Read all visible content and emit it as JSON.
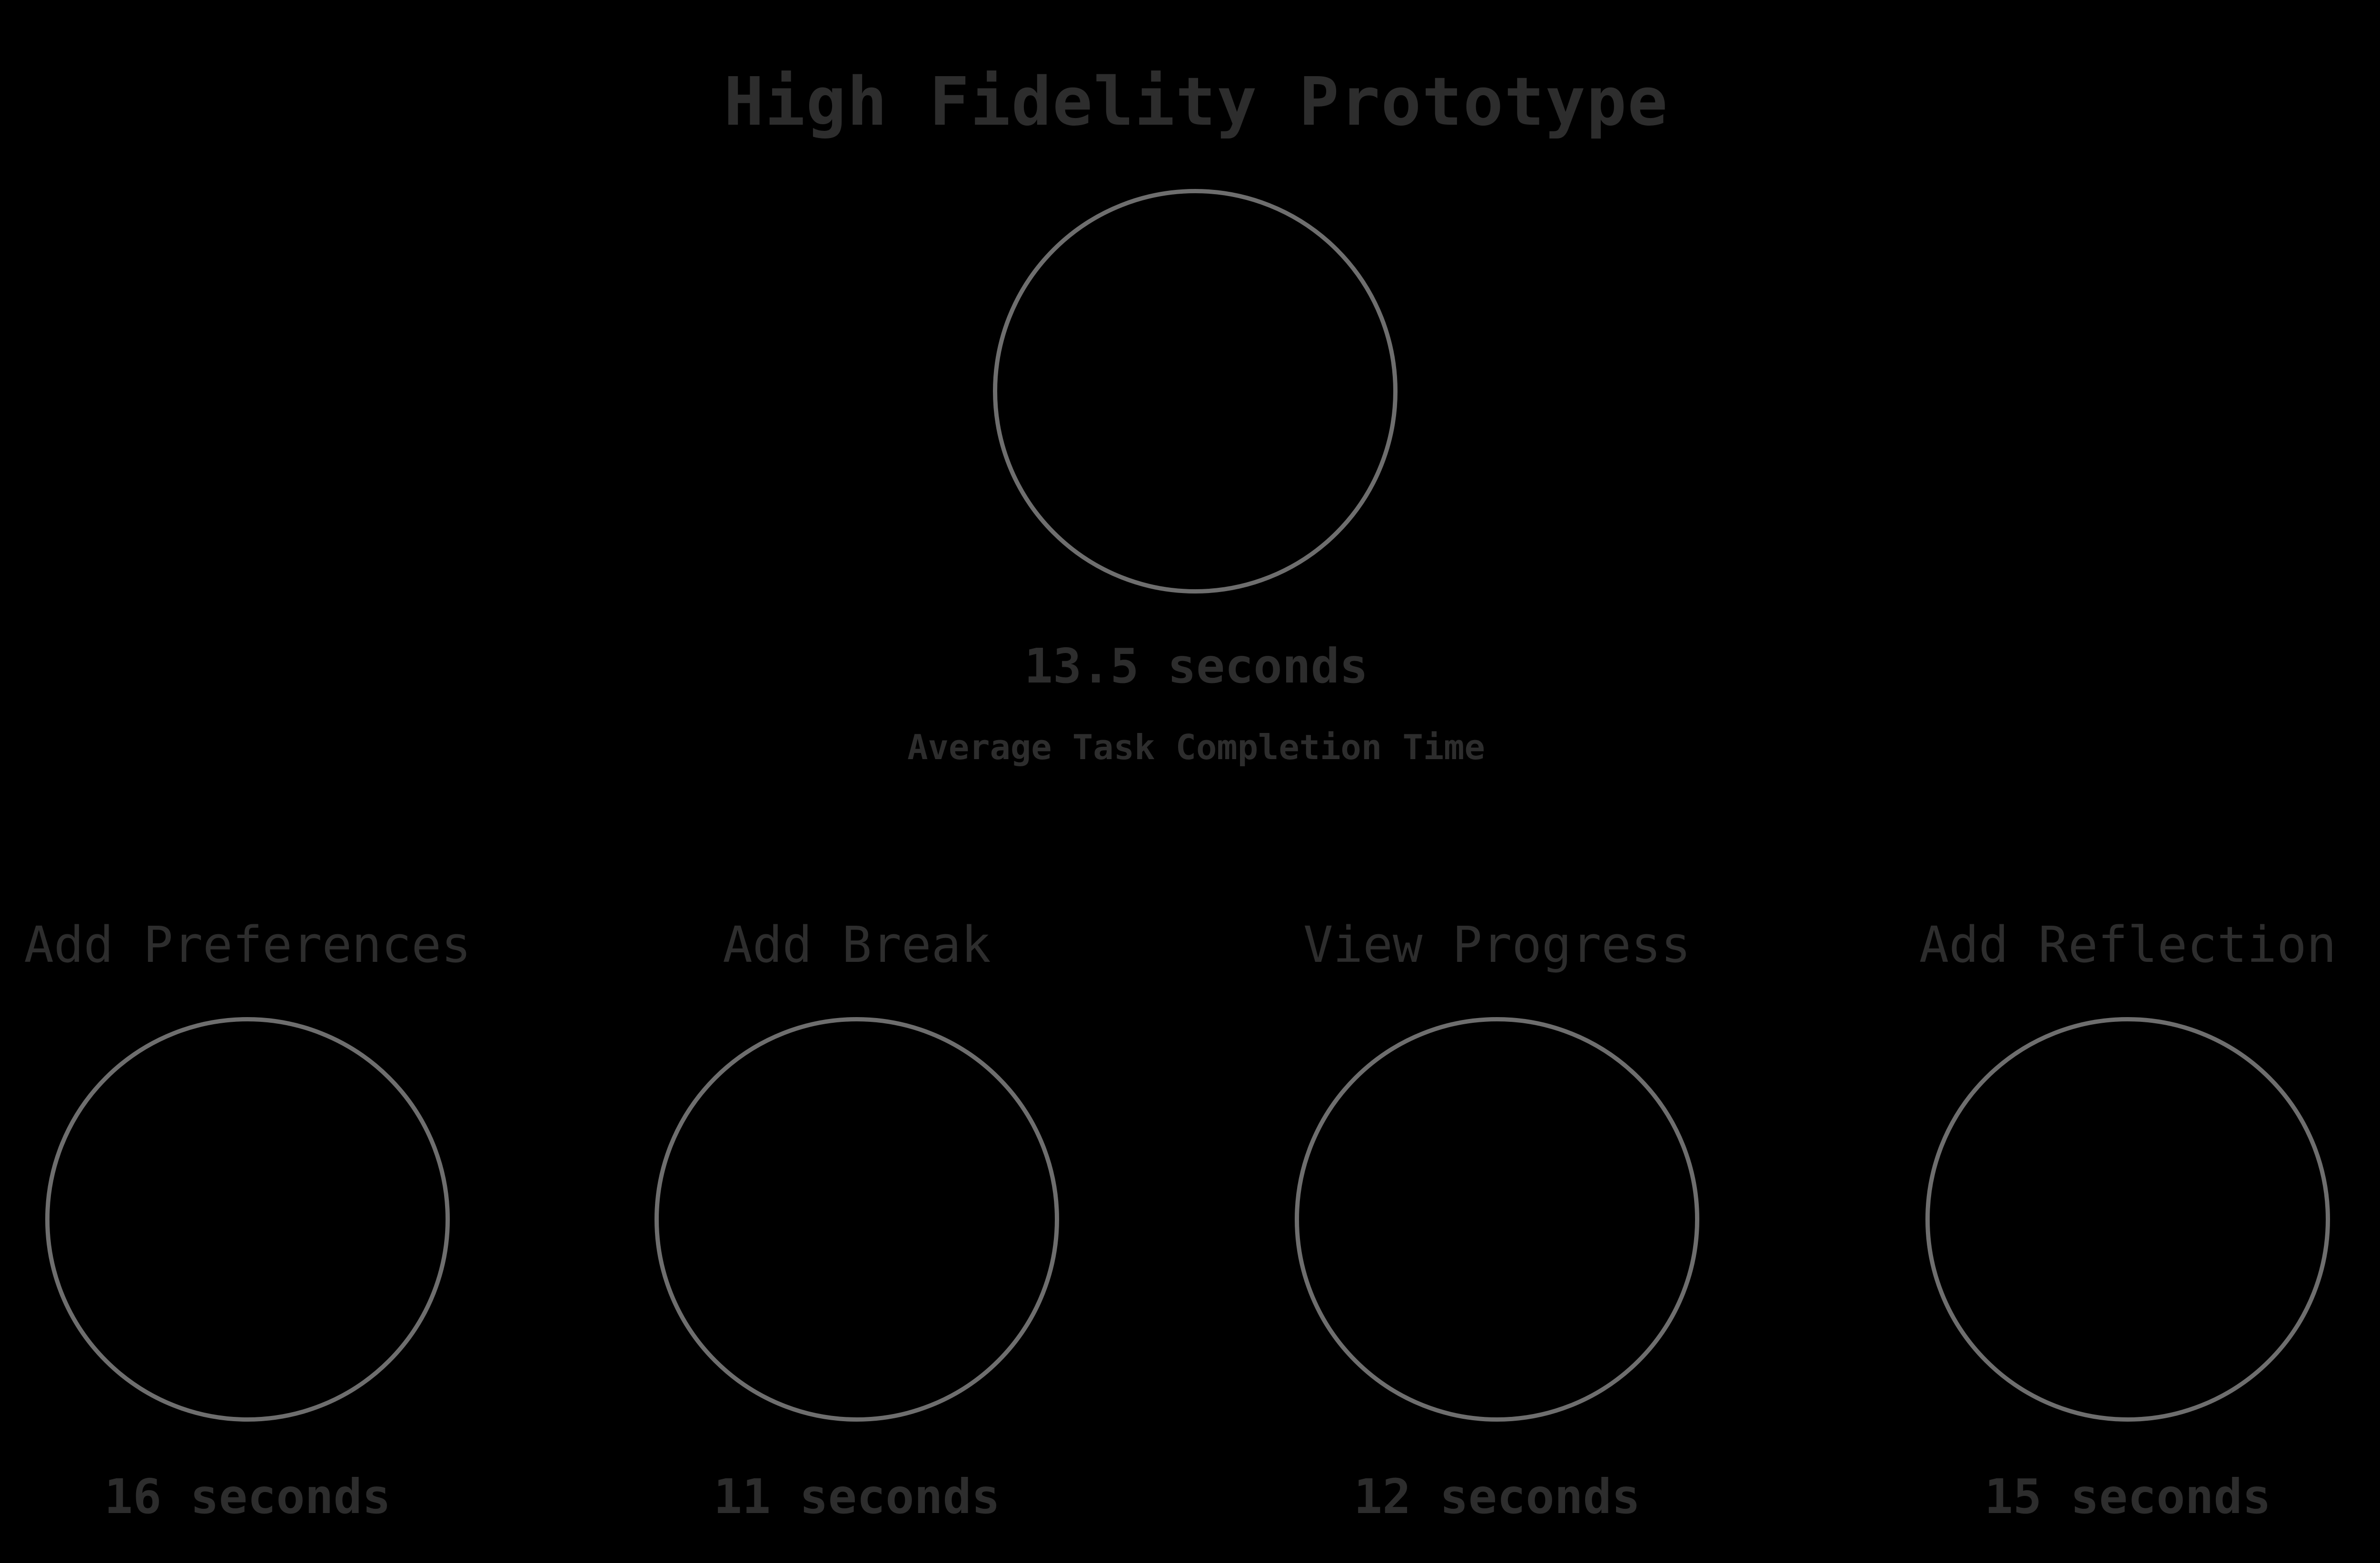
{
  "title": "High Fidelity Prototype",
  "summary": {
    "value": "13.5 seconds",
    "caption": "Average Task Completion Time"
  },
  "tasks": [
    {
      "label": "Add Preferences",
      "time": "16 seconds"
    },
    {
      "label": "Add Break",
      "time": "11 seconds"
    },
    {
      "label": "View Progress",
      "time": "12 seconds"
    },
    {
      "label": "Add Reflection",
      "time": "15 seconds"
    }
  ],
  "colors": {
    "background": "#000000",
    "text": "#2d2d2d",
    "ring": "#6e6e6e"
  }
}
